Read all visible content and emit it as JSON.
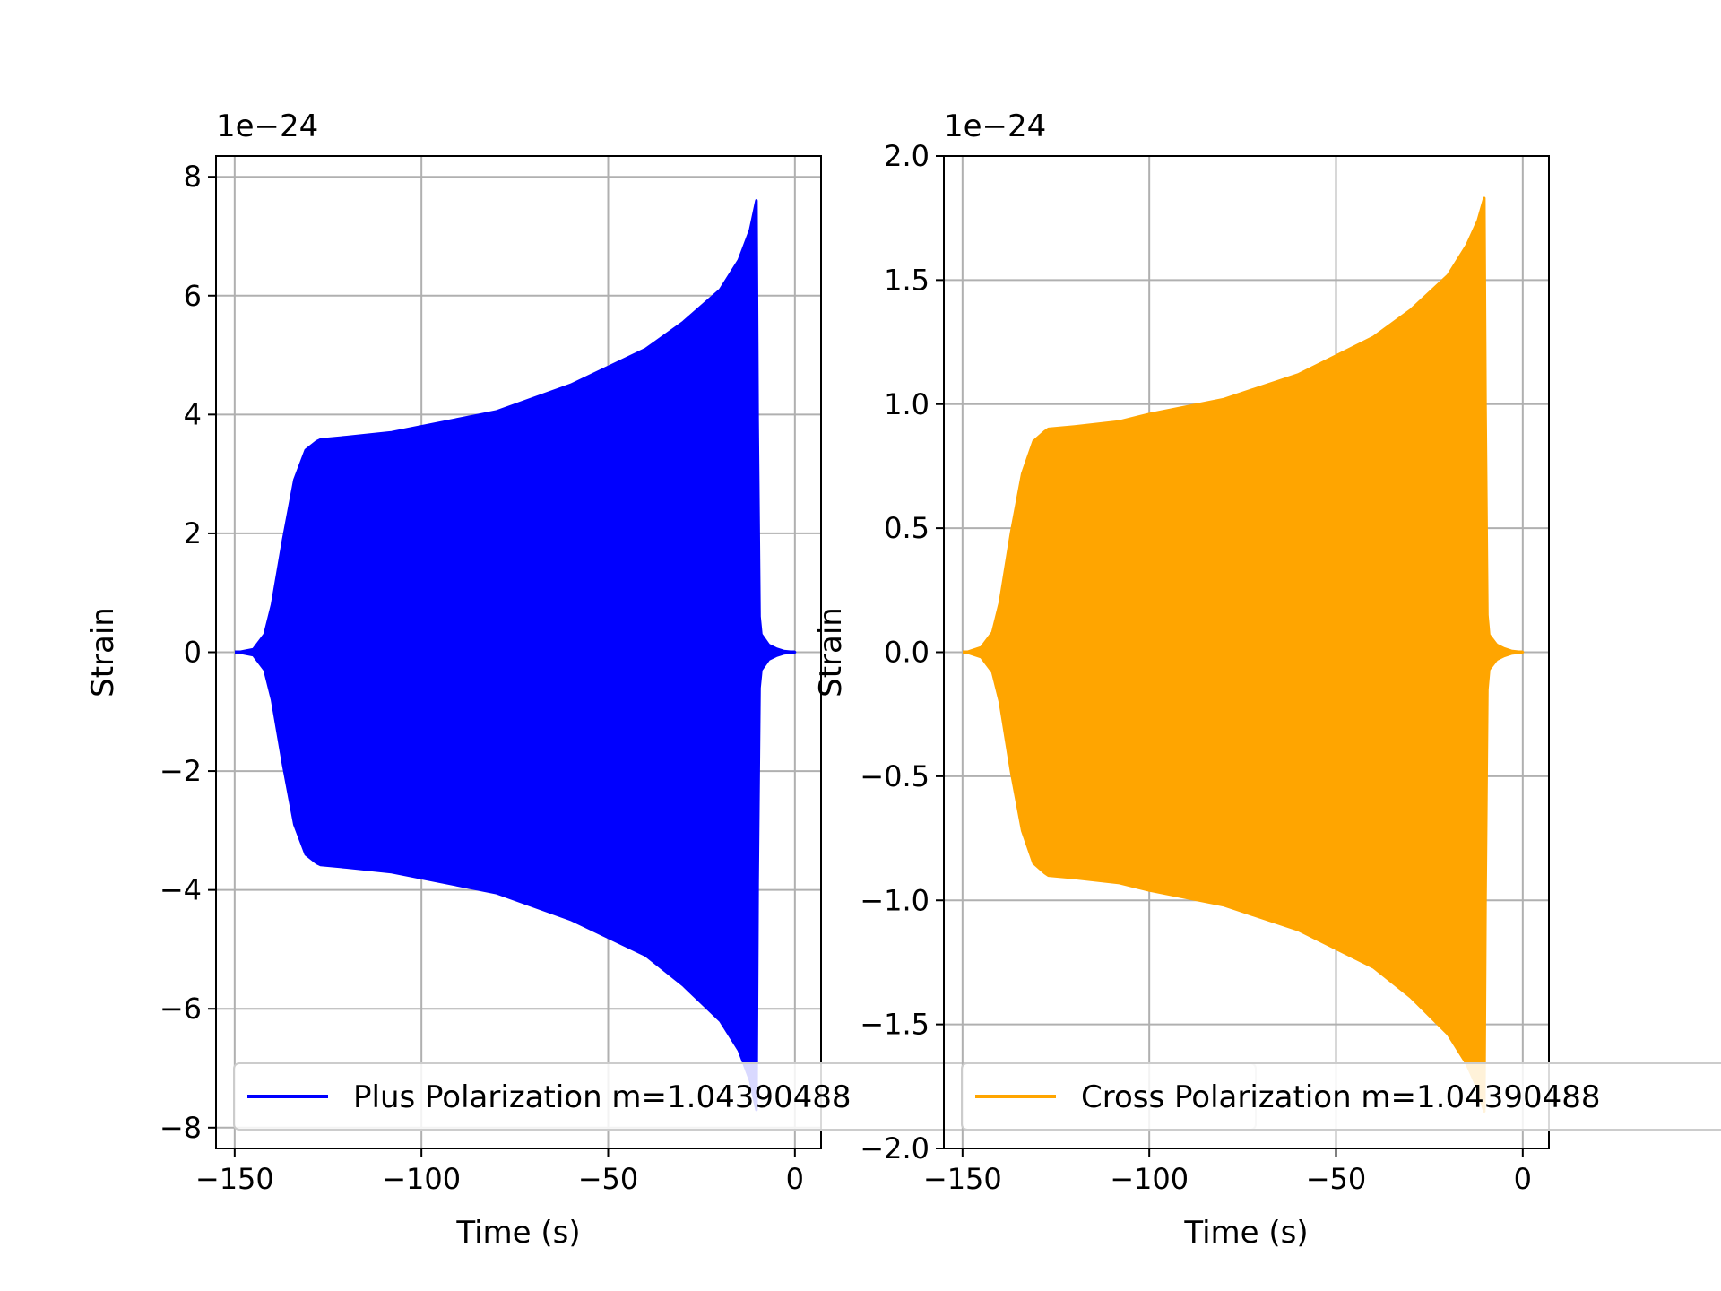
{
  "chart_data": [
    {
      "type": "area",
      "title": "",
      "xlabel": "Time (s)",
      "ylabel": "Strain",
      "offset_label": "1e−24",
      "xlim": [
        -155,
        7
      ],
      "ylim": [
        -8.35,
        8.35
      ],
      "xticks": [
        -150,
        -100,
        -50,
        0
      ],
      "xtick_labels": [
        "−150",
        "−100",
        "−50",
        "0"
      ],
      "yticks": [
        -8,
        -6,
        -4,
        -2,
        0,
        2,
        4,
        6,
        8
      ],
      "ytick_labels": [
        "−8",
        "−6",
        "−4",
        "−2",
        "0",
        "2",
        "4",
        "6",
        "8"
      ],
      "grid": true,
      "legend": "lower-center",
      "series": [
        {
          "name": "Plus Polarization m=1.04390488",
          "color": "#0000ff",
          "envelope": {
            "t": [
              -149,
              -145,
              -142,
              -140,
              -137,
              -134,
              -131,
              -128,
              -127,
              -120,
              -108,
              -100,
              -80,
              -60,
              -40,
              -30,
              -20,
              -15,
              -12,
              -10.3,
              -10,
              -9.5,
              -9,
              -7,
              -5,
              -3,
              0
            ],
            "upper": [
              0,
              0.05,
              0.3,
              0.8,
              1.9,
              2.9,
              3.4,
              3.55,
              3.58,
              3.62,
              3.7,
              3.8,
              4.05,
              4.5,
              5.1,
              5.55,
              6.1,
              6.6,
              7.1,
              7.6,
              3.9,
              0.6,
              0.3,
              0.12,
              0.06,
              0.02,
              0
            ],
            "lower": [
              0,
              -0.05,
              -0.3,
              -0.8,
              -1.9,
              -2.9,
              -3.4,
              -3.55,
              -3.58,
              -3.62,
              -3.7,
              -3.8,
              -4.05,
              -4.5,
              -5.1,
              -5.6,
              -6.2,
              -6.7,
              -7.2,
              -7.7,
              -3.9,
              -0.6,
              -0.3,
              -0.12,
              -0.06,
              -0.02,
              0
            ]
          }
        }
      ]
    },
    {
      "type": "area",
      "title": "",
      "xlabel": "Time (s)",
      "ylabel": "Strain",
      "offset_label": "1e−24",
      "xlim": [
        -155,
        7
      ],
      "ylim": [
        -2.0,
        2.0
      ],
      "xticks": [
        -150,
        -100,
        -50,
        0
      ],
      "xtick_labels": [
        "−150",
        "−100",
        "−50",
        "0"
      ],
      "yticks": [
        -2.0,
        -1.5,
        -1.0,
        -0.5,
        0.0,
        0.5,
        1.0,
        1.5,
        2.0
      ],
      "ytick_labels": [
        "−2.0",
        "−1.5",
        "−1.0",
        "−0.5",
        "0.0",
        "0.5",
        "1.0",
        "1.5",
        "2.0"
      ],
      "grid": true,
      "legend": "lower-center",
      "series": [
        {
          "name": "Cross Polarization m=1.04390488",
          "color": "#ffa500",
          "envelope": {
            "t": [
              -149,
              -145,
              -142,
              -140,
              -137,
              -134,
              -131,
              -128,
              -127,
              -120,
              -108,
              -100,
              -80,
              -60,
              -40,
              -30,
              -20,
              -15,
              -12,
              -10.3,
              -10,
              -9.5,
              -9,
              -7,
              -5,
              -3,
              0
            ],
            "upper": [
              0,
              0.02,
              0.08,
              0.2,
              0.48,
              0.72,
              0.85,
              0.89,
              0.9,
              0.91,
              0.93,
              0.96,
              1.02,
              1.12,
              1.27,
              1.38,
              1.52,
              1.64,
              1.74,
              1.83,
              1.0,
              0.15,
              0.07,
              0.03,
              0.015,
              0.005,
              0
            ],
            "lower": [
              0,
              -0.02,
              -0.08,
              -0.2,
              -0.48,
              -0.72,
              -0.85,
              -0.89,
              -0.9,
              -0.91,
              -0.93,
              -0.96,
              -1.02,
              -1.12,
              -1.27,
              -1.39,
              -1.54,
              -1.66,
              -1.76,
              -1.85,
              -1.0,
              -0.15,
              -0.07,
              -0.03,
              -0.015,
              -0.005,
              0
            ]
          }
        }
      ]
    }
  ]
}
